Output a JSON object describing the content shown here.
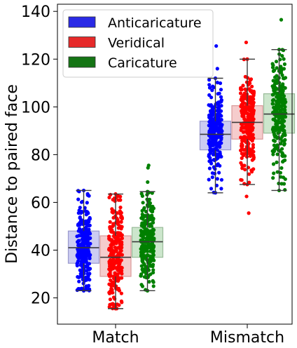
{
  "chart_data": {
    "type": "box_strip",
    "title": "",
    "xlabel": "",
    "ylabel": "Distance to paired face",
    "ylim": [
      9,
      143
    ],
    "yticks": [
      20,
      40,
      60,
      80,
      100,
      120,
      140
    ],
    "categories": [
      "Match",
      "Mismatch"
    ],
    "legend": {
      "placement": "top-left"
    },
    "series": [
      {
        "name": "Anticaricature",
        "color": "#0000ff",
        "box_fill": "#ccccf2",
        "box_edge": "#9999cc",
        "stats": [
          {
            "category": "Match",
            "min": 23,
            "q1": 34.5,
            "median": 41,
            "q3": 48,
            "max": 65
          },
          {
            "category": "Mismatch",
            "min": 64,
            "q1": 82,
            "median": 88.5,
            "q3": 94,
            "max": 112
          }
        ],
        "outliers": [
          {
            "category": "Mismatch",
            "y": 116
          },
          {
            "category": "Mismatch",
            "y": 125.5
          }
        ]
      },
      {
        "name": "Veridical",
        "color": "#ff0000",
        "box_fill": "#f5cccc",
        "box_edge": "#d99999",
        "stats": [
          {
            "category": "Match",
            "min": 15.5,
            "q1": 29,
            "median": 37,
            "q3": 46,
            "max": 63.5
          },
          {
            "category": "Mismatch",
            "min": 67.5,
            "q1": 86.5,
            "median": 93.5,
            "q3": 100.5,
            "max": 120
          }
        ],
        "outliers": [
          {
            "category": "Mismatch",
            "y": 55.5
          },
          {
            "category": "Mismatch",
            "y": 62.5
          },
          {
            "category": "Mismatch",
            "y": 127
          }
        ]
      },
      {
        "name": "Caricature",
        "color": "#008000",
        "box_fill": "#cce6cc",
        "box_edge": "#99bb99",
        "stats": [
          {
            "category": "Match",
            "min": 23,
            "q1": 37,
            "median": 43.5,
            "q3": 49.5,
            "max": 64.5
          },
          {
            "category": "Mismatch",
            "min": 65,
            "q1": 89,
            "median": 97,
            "q3": 105.5,
            "max": 124
          }
        ],
        "outliers": [
          {
            "category": "Match",
            "y": 74.5
          },
          {
            "category": "Match",
            "y": 75.5
          },
          {
            "category": "Match",
            "y": 68.5
          },
          {
            "category": "Mismatch",
            "y": 136.5
          }
        ]
      }
    ]
  }
}
